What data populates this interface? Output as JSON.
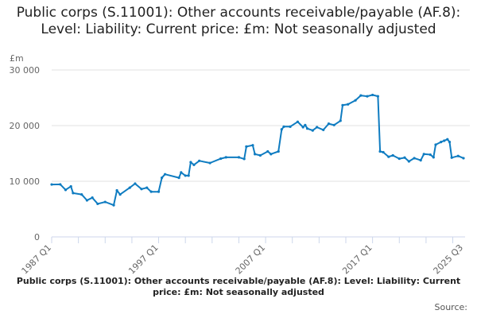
{
  "chart_data": {
    "type": "line",
    "title": "Public corps (S.11001): Other accounts receivable/payable (AF.8): Level: Liability: Current price: £m: Not seasonally adjusted",
    "ylabel": "£m",
    "xlabel": "",
    "ylim": [
      0,
      30000
    ],
    "xlim": [
      1987.0,
      2025.5
    ],
    "y_ticks": [
      {
        "value": 0,
        "label": "0"
      },
      {
        "value": 10000,
        "label": "10 000"
      },
      {
        "value": 20000,
        "label": "20 000"
      },
      {
        "value": 30000,
        "label": "30 000"
      }
    ],
    "x_tick_labels": [
      {
        "value": 1987.0,
        "label": "1987 Q1"
      },
      {
        "value": 1997.0,
        "label": "1997 Q1"
      },
      {
        "value": 2007.0,
        "label": "2007 Q1"
      },
      {
        "value": 2017.0,
        "label": "2017 Q1"
      },
      {
        "value": 2025.5,
        "label": "2025 Q3"
      }
    ],
    "grid": true,
    "color": "#0f7cc1",
    "series": [
      {
        "name": "Public corps (S.11001): Other accounts receivable/payable (AF.8): Level: Liability: Current price: £m: Not seasonally adjusted",
        "points": [
          [
            1987.0,
            9420
          ],
          [
            1987.8,
            9440
          ],
          [
            1988.3,
            8450
          ],
          [
            1988.8,
            9080
          ],
          [
            1989.0,
            7870
          ],
          [
            1989.8,
            7630
          ],
          [
            1990.3,
            6570
          ],
          [
            1990.8,
            7050
          ],
          [
            1991.3,
            5940
          ],
          [
            1992.0,
            6280
          ],
          [
            1992.8,
            5700
          ],
          [
            1993.1,
            8360
          ],
          [
            1993.4,
            7630
          ],
          [
            1994.3,
            8840
          ],
          [
            1994.8,
            9570
          ],
          [
            1995.4,
            8600
          ],
          [
            1995.9,
            8840
          ],
          [
            1996.3,
            8120
          ],
          [
            1997.0,
            8120
          ],
          [
            1997.3,
            10630
          ],
          [
            1997.6,
            11260
          ],
          [
            1998.9,
            10630
          ],
          [
            1999.1,
            11590
          ],
          [
            1999.5,
            11010
          ],
          [
            1999.8,
            11010
          ],
          [
            2000.0,
            13430
          ],
          [
            2000.3,
            12950
          ],
          [
            2000.8,
            13670
          ],
          [
            2001.8,
            13280
          ],
          [
            2002.8,
            14060
          ],
          [
            2003.3,
            14300
          ],
          [
            2004.5,
            14300
          ],
          [
            2005.0,
            14010
          ],
          [
            2005.2,
            16230
          ],
          [
            2005.8,
            16470
          ],
          [
            2006.0,
            14880
          ],
          [
            2006.5,
            14640
          ],
          [
            2007.2,
            15360
          ],
          [
            2007.5,
            14880
          ],
          [
            2008.2,
            15360
          ],
          [
            2008.5,
            19320
          ],
          [
            2008.7,
            19810
          ],
          [
            2009.3,
            19810
          ],
          [
            2010.0,
            20680
          ],
          [
            2010.5,
            19710
          ],
          [
            2010.7,
            20100
          ],
          [
            2010.9,
            19470
          ],
          [
            2011.4,
            19130
          ],
          [
            2011.8,
            19710
          ],
          [
            2012.4,
            19230
          ],
          [
            2012.9,
            20340
          ],
          [
            2013.4,
            20100
          ],
          [
            2014.0,
            20870
          ],
          [
            2014.2,
            23670
          ],
          [
            2014.7,
            23820
          ],
          [
            2015.4,
            24540
          ],
          [
            2015.9,
            25410
          ],
          [
            2016.5,
            25270
          ],
          [
            2017.0,
            25510
          ],
          [
            2017.5,
            25270
          ],
          [
            2017.7,
            15360
          ],
          [
            2018.0,
            15220
          ],
          [
            2018.5,
            14400
          ],
          [
            2018.9,
            14640
          ],
          [
            2019.5,
            14060
          ],
          [
            2020.0,
            14250
          ],
          [
            2020.4,
            13570
          ],
          [
            2020.9,
            14150
          ],
          [
            2021.5,
            13770
          ],
          [
            2021.8,
            14880
          ],
          [
            2022.4,
            14780
          ],
          [
            2022.7,
            14300
          ],
          [
            2022.9,
            16570
          ],
          [
            2023.4,
            17050
          ],
          [
            2023.7,
            17290
          ],
          [
            2024.0,
            17540
          ],
          [
            2024.2,
            17050
          ],
          [
            2024.4,
            14250
          ],
          [
            2025.0,
            14540
          ],
          [
            2025.5,
            14150
          ]
        ]
      }
    ],
    "legend_text": "Public corps (S.11001): Other accounts receivable/payable (AF.8): Level: Liability: Current price: £m: Not seasonally adjusted",
    "source_label": "Source:"
  }
}
